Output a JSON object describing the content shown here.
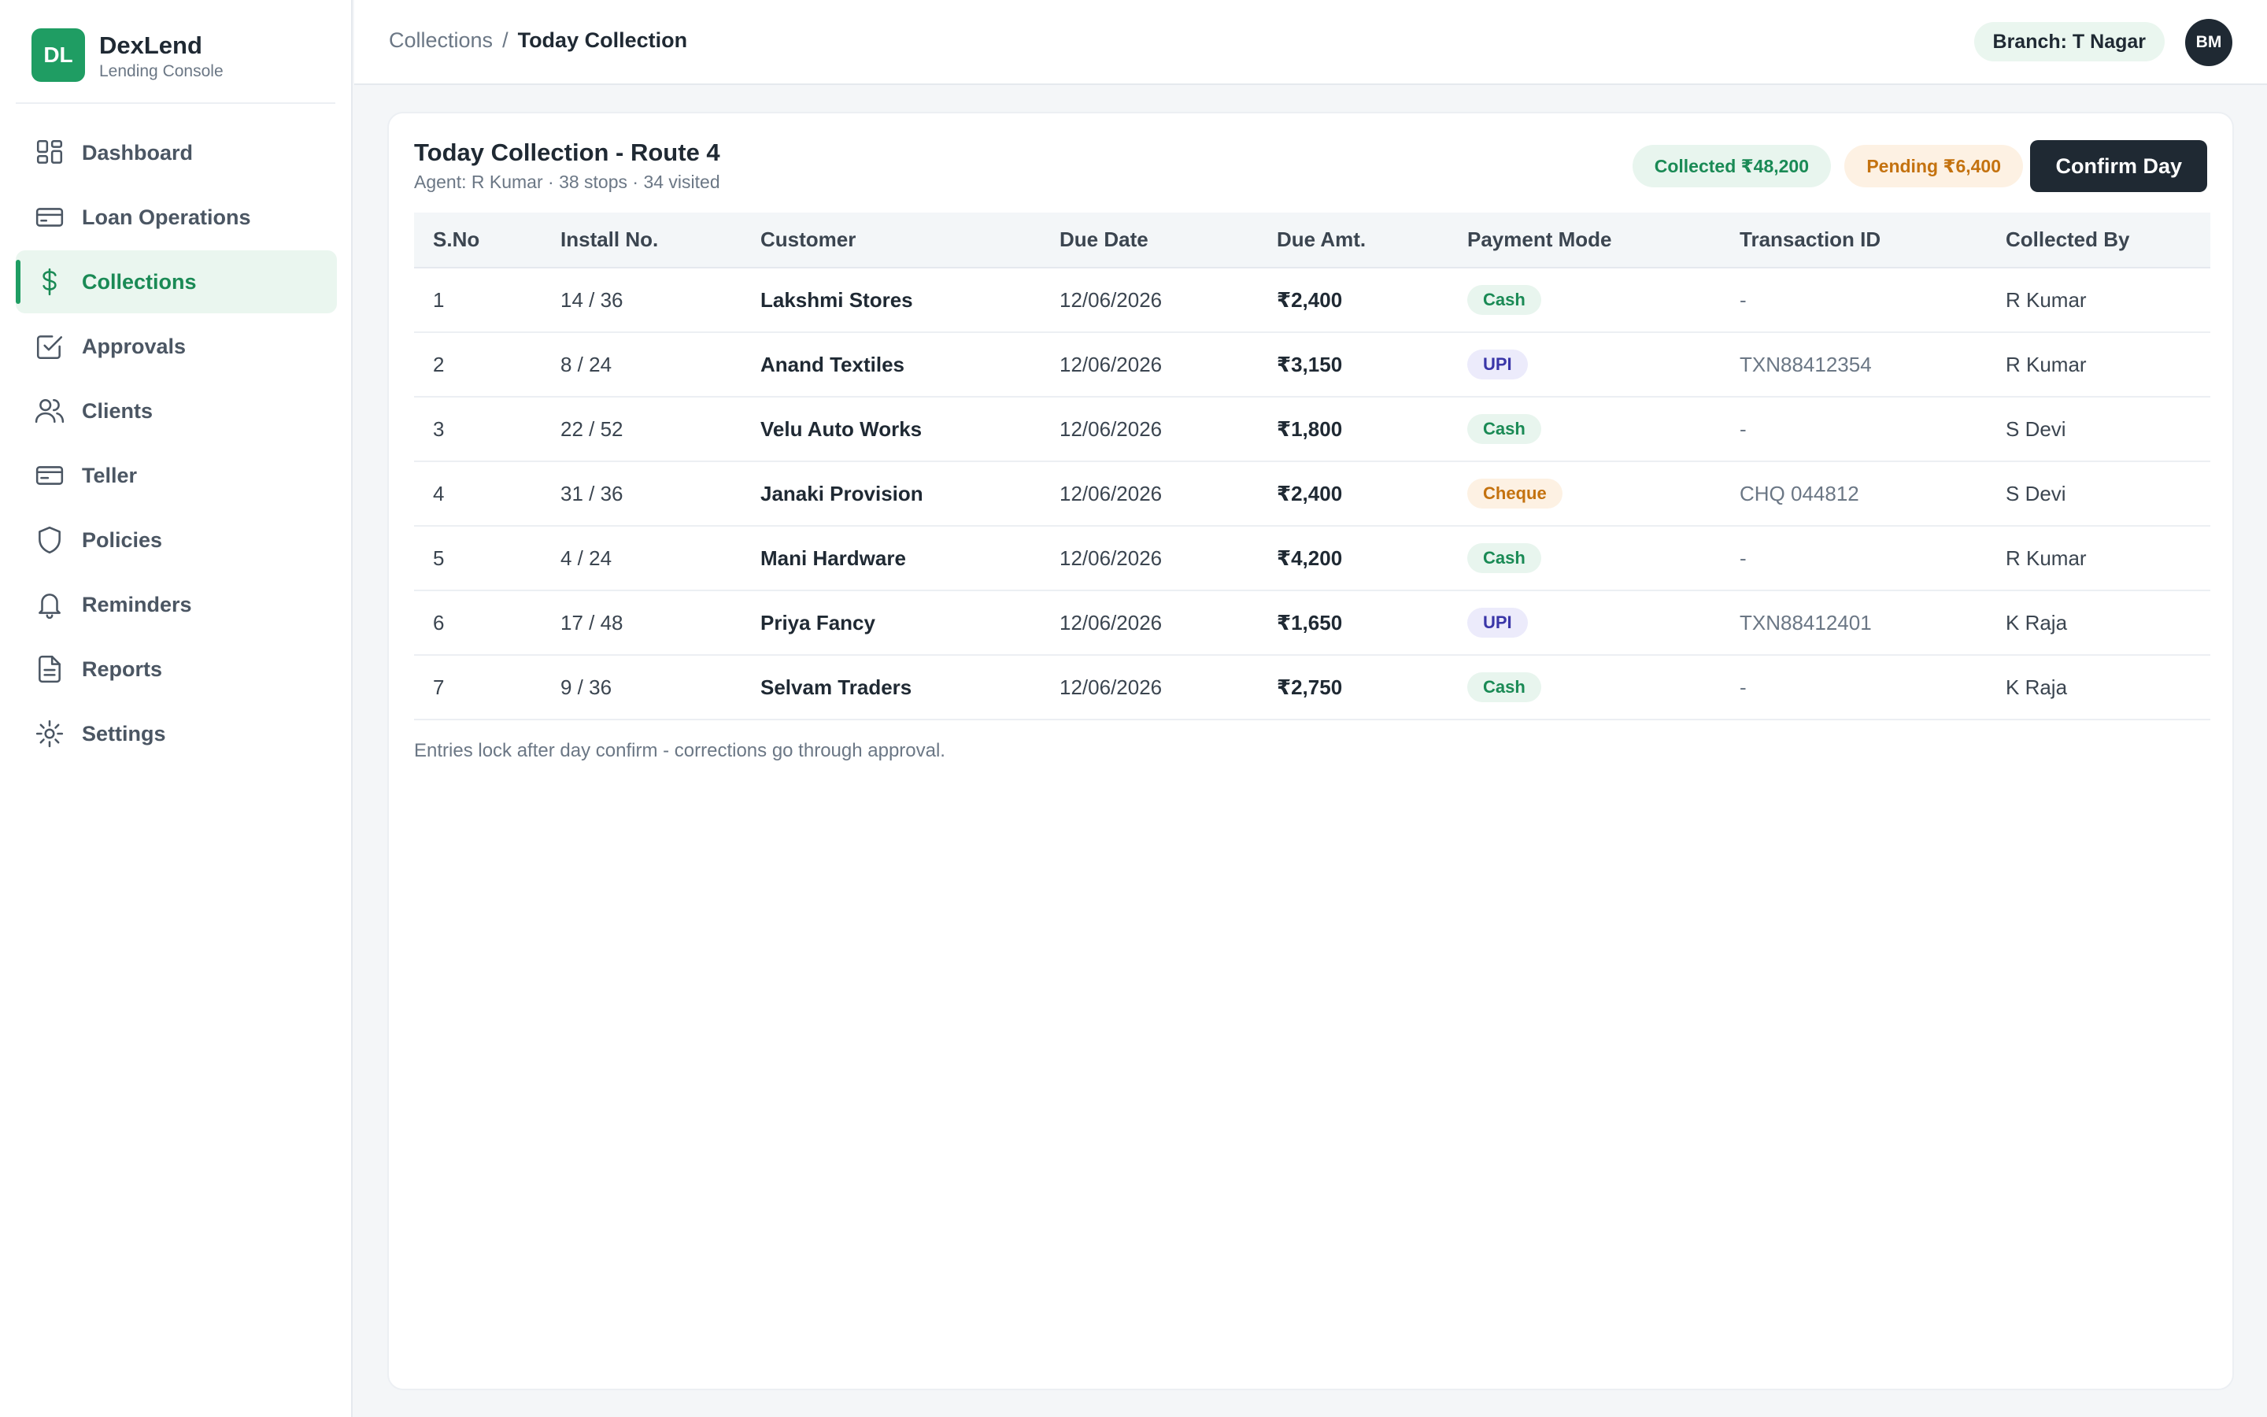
{
  "brand": {
    "logo": "DL",
    "name": "DexLend",
    "subtitle": "Lending Console",
    "color": "#1f9d63"
  },
  "sidebar": {
    "items": [
      {
        "label": "Dashboard",
        "icon": "dashboard-grid-icon",
        "active": false
      },
      {
        "label": "Loan Operations",
        "icon": "card-icon",
        "active": false
      },
      {
        "label": "Collections",
        "icon": "dollar-icon",
        "active": true
      },
      {
        "label": "Approvals",
        "icon": "checkbox-icon",
        "active": false
      },
      {
        "label": "Clients",
        "icon": "users-icon",
        "active": false
      },
      {
        "label": "Teller",
        "icon": "wallet-card-icon",
        "active": false
      },
      {
        "label": "Policies",
        "icon": "shield-icon",
        "active": false
      },
      {
        "label": "Reminders",
        "icon": "bell-icon",
        "active": false
      },
      {
        "label": "Reports",
        "icon": "document-icon",
        "active": false
      },
      {
        "label": "Settings",
        "icon": "gear-icon",
        "active": false
      }
    ]
  },
  "topbar": {
    "breadcrumb": {
      "parent": "Collections",
      "separator": "/",
      "current": "Today Collection"
    },
    "branch": "Branch: T Nagar",
    "avatar": "BM"
  },
  "card": {
    "title": "Today Collection - Route 4",
    "subtitle": "Agent: R Kumar · 38 stops · 34 visited",
    "collected": "Collected ₹48,200",
    "pending": "Pending ₹6,400",
    "confirm_label": "Confirm Day",
    "footnote": "Entries lock after day confirm - corrections go through approval."
  },
  "table": {
    "columns": [
      "S.No",
      "Install No.",
      "Customer",
      "Due Date",
      "Due Amt.",
      "Payment Mode",
      "Transaction ID",
      "Collected By"
    ],
    "rows": [
      {
        "sno": "1",
        "install": "14 / 36",
        "customer": "Lakshmi Stores",
        "due_date": "12/06/2026",
        "amount": "₹2,400",
        "mode": "Cash",
        "txn": "-",
        "by": "R Kumar"
      },
      {
        "sno": "2",
        "install": "8 / 24",
        "customer": "Anand Textiles",
        "due_date": "12/06/2026",
        "amount": "₹3,150",
        "mode": "UPI",
        "txn": "TXN88412354",
        "by": "R Kumar"
      },
      {
        "sno": "3",
        "install": "22 / 52",
        "customer": "Velu Auto Works",
        "due_date": "12/06/2026",
        "amount": "₹1,800",
        "mode": "Cash",
        "txn": "-",
        "by": "S Devi"
      },
      {
        "sno": "4",
        "install": "31 / 36",
        "customer": "Janaki Provision",
        "due_date": "12/06/2026",
        "amount": "₹2,400",
        "mode": "Cheque",
        "txn": "CHQ 044812",
        "by": "S Devi"
      },
      {
        "sno": "5",
        "install": "4 / 24",
        "customer": "Mani Hardware",
        "due_date": "12/06/2026",
        "amount": "₹4,200",
        "mode": "Cash",
        "txn": "-",
        "by": "R Kumar"
      },
      {
        "sno": "6",
        "install": "17 / 48",
        "customer": "Priya Fancy",
        "due_date": "12/06/2026",
        "amount": "₹1,650",
        "mode": "UPI",
        "txn": "TXN88412401",
        "by": "K Raja"
      },
      {
        "sno": "7",
        "install": "9 / 36",
        "customer": "Selvam Traders",
        "due_date": "12/06/2026",
        "amount": "₹2,750",
        "mode": "Cash",
        "txn": "-",
        "by": "K Raja"
      }
    ]
  },
  "mode_colors": {
    "Cash": {
      "bg": "#e8f5ee",
      "fg": "#1a8a55"
    },
    "UPI": {
      "bg": "#ecebfb",
      "fg": "#3a36a8"
    },
    "Cheque": {
      "bg": "#fdf1e3",
      "fg": "#c4720f"
    }
  }
}
